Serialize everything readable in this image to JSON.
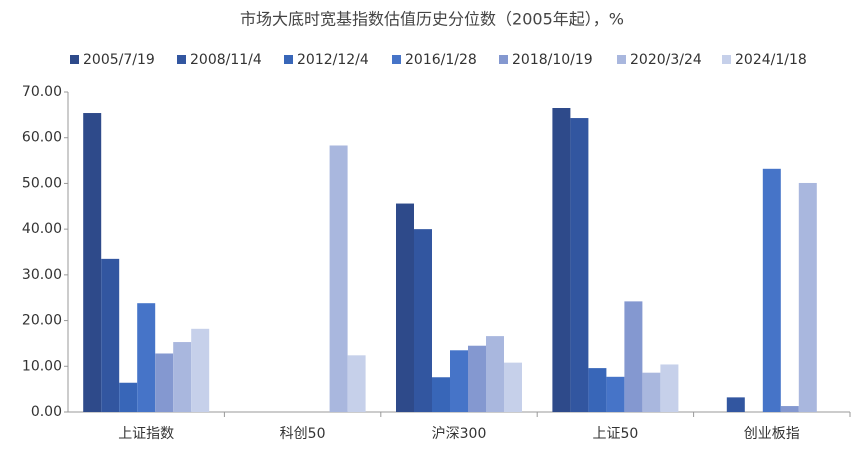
{
  "chart_data": {
    "type": "bar",
    "title": "市场大底时宽基指数估值历史分位数（2005年起），%",
    "categories": [
      "上证指数",
      "科创50",
      "沪深300",
      "上证50",
      "创业板指"
    ],
    "series": [
      {
        "name": "2005/7/19",
        "color": "#2e4a8a",
        "values": [
          65.4,
          null,
          45.6,
          66.5,
          null
        ]
      },
      {
        "name": "2008/11/4",
        "color": "#3256a0",
        "values": [
          33.5,
          null,
          40.0,
          64.3,
          3.2
        ]
      },
      {
        "name": "2012/12/4",
        "color": "#3866b8",
        "values": [
          6.4,
          null,
          7.6,
          9.6,
          null
        ]
      },
      {
        "name": "2016/1/28",
        "color": "#4674c8",
        "values": [
          23.8,
          null,
          13.5,
          7.7,
          53.2
        ]
      },
      {
        "name": "2018/10/19",
        "color": "#8498d0",
        "values": [
          12.8,
          null,
          14.5,
          24.2,
          1.3
        ]
      },
      {
        "name": "2020/3/24",
        "color": "#a9b7de",
        "values": [
          15.3,
          58.3,
          16.6,
          8.6,
          50.1
        ]
      },
      {
        "name": "2024/1/18",
        "color": "#c6d0ea",
        "values": [
          18.2,
          12.4,
          10.8,
          10.4,
          null
        ]
      }
    ],
    "ylim": [
      0,
      70
    ],
    "yticks": [
      {
        "value": 0,
        "label": "0.00"
      },
      {
        "value": 10,
        "label": "10.00"
      },
      {
        "value": 20,
        "label": "20.00"
      },
      {
        "value": 30,
        "label": "30.00"
      },
      {
        "value": 40,
        "label": "40.00"
      },
      {
        "value": 50,
        "label": "50.00"
      },
      {
        "value": 60,
        "label": "60.00"
      },
      {
        "value": 70,
        "label": "70.00"
      }
    ],
    "grid": false,
    "legend": "top"
  }
}
